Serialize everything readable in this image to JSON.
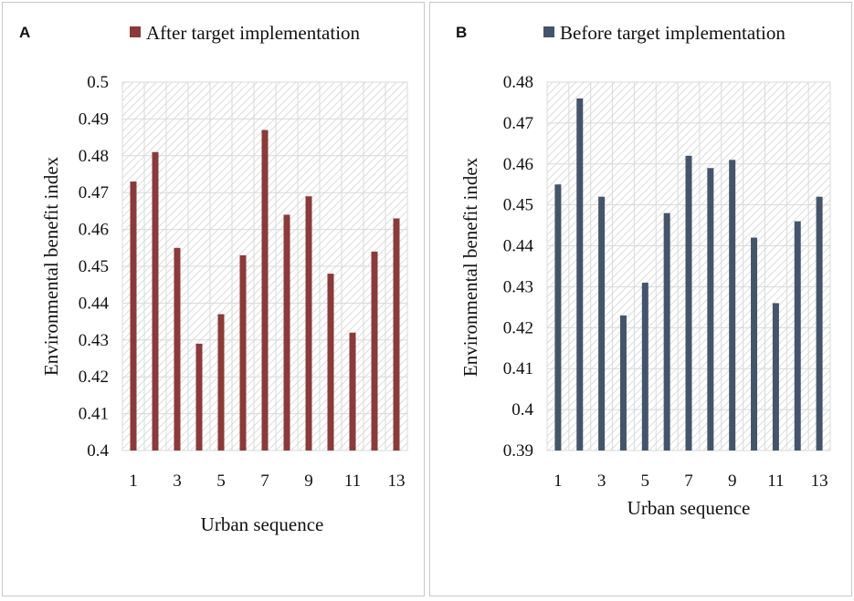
{
  "chart_data": [
    {
      "id": "A",
      "type": "bar",
      "panel_label": "A",
      "legend": "After target implementation",
      "color": "#8B3A3A",
      "xlabel": "Urban sequence",
      "ylabel": "Environmental benefit index",
      "ylim": [
        0.4,
        0.5
      ],
      "yticks": [
        "0.4",
        "0.41",
        "0.42",
        "0.43",
        "0.44",
        "0.45",
        "0.46",
        "0.47",
        "0.48",
        "0.49",
        "0.5"
      ],
      "categories": [
        1,
        2,
        3,
        4,
        5,
        6,
        7,
        8,
        9,
        10,
        11,
        12,
        13
      ],
      "xtick_labels": [
        "1",
        "3",
        "5",
        "7",
        "9",
        "11",
        "13"
      ],
      "values": [
        0.473,
        0.481,
        0.455,
        0.429,
        0.437,
        0.453,
        0.487,
        0.464,
        0.469,
        0.448,
        0.432,
        0.454,
        0.463
      ]
    },
    {
      "id": "B",
      "type": "bar",
      "panel_label": "B",
      "legend": "Before target implementation",
      "color": "#44546A",
      "xlabel": "Urban sequence",
      "ylabel": "Environmental benefit index",
      "ylim": [
        0.39,
        0.48
      ],
      "yticks": [
        "0.39",
        "0.4",
        "0.41",
        "0.42",
        "0.43",
        "0.44",
        "0.45",
        "0.46",
        "0.47",
        "0.48"
      ],
      "categories": [
        1,
        2,
        3,
        4,
        5,
        6,
        7,
        8,
        9,
        10,
        11,
        12,
        13
      ],
      "xtick_labels": [
        "1",
        "3",
        "5",
        "7",
        "9",
        "11",
        "13"
      ],
      "values": [
        0.455,
        0.476,
        0.452,
        0.423,
        0.431,
        0.448,
        0.462,
        0.459,
        0.461,
        0.442,
        0.426,
        0.446,
        0.452
      ]
    }
  ]
}
